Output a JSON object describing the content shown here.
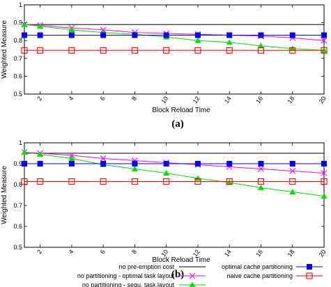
{
  "chart_data": [
    {
      "type": "line",
      "panel_label": "(a)",
      "xlabel": "Block Reload Time",
      "ylabel": "Weighted Measure",
      "xlim": [
        1,
        20
      ],
      "ylim": [
        0.5,
        1
      ],
      "xticks": [
        2,
        4,
        6,
        8,
        10,
        12,
        14,
        16,
        18,
        20
      ],
      "yticks": [
        0.5,
        0.6,
        0.7,
        0.8,
        0.9,
        1
      ],
      "grid": false,
      "series": [
        {
          "name": "no pre-emption cost",
          "color": "#000000",
          "marker": "none",
          "x": [
            1,
            20
          ],
          "y": [
            0.89,
            0.89
          ]
        },
        {
          "name": "no partitioning - optimal task layout",
          "color": "#ff00ff",
          "marker": "cross",
          "x": [
            1,
            2,
            4,
            6,
            8,
            10,
            12,
            14,
            16,
            18,
            20
          ],
          "y": [
            0.89,
            0.885,
            0.87,
            0.86,
            0.845,
            0.84,
            0.835,
            0.83,
            0.825,
            0.815,
            0.8
          ]
        },
        {
          "name": "no partitioning - sequ. task layout",
          "color": "#00dd00",
          "marker": "triangle",
          "x": [
            1,
            2,
            4,
            6,
            8,
            10,
            12,
            14,
            16,
            18,
            20
          ],
          "y": [
            0.89,
            0.88,
            0.86,
            0.845,
            0.835,
            0.82,
            0.8,
            0.79,
            0.77,
            0.755,
            0.745
          ]
        },
        {
          "name": "optimal cache partitioning",
          "color": "#0000ff",
          "marker": "filled-square",
          "x": [
            1,
            2,
            4,
            6,
            8,
            10,
            12,
            14,
            16,
            18,
            20
          ],
          "y": [
            0.83,
            0.83,
            0.83,
            0.83,
            0.83,
            0.83,
            0.83,
            0.83,
            0.83,
            0.83,
            0.83
          ]
        },
        {
          "name": "naive cache partitioning",
          "color": "#ff0000",
          "marker": "open-square",
          "x": [
            1,
            2,
            4,
            6,
            8,
            10,
            12,
            14,
            16,
            18,
            20
          ],
          "y": [
            0.745,
            0.745,
            0.745,
            0.745,
            0.745,
            0.745,
            0.745,
            0.745,
            0.745,
            0.745,
            0.745
          ]
        }
      ]
    },
    {
      "type": "line",
      "panel_label": "(b)",
      "xlabel": "Block Reload Time",
      "ylabel": "Weighted Measure",
      "xlim": [
        1,
        20
      ],
      "ylim": [
        0.5,
        1
      ],
      "xticks": [
        2,
        4,
        6,
        8,
        10,
        12,
        14,
        16,
        18,
        20
      ],
      "yticks": [
        0.5,
        0.6,
        0.7,
        0.8,
        0.9,
        1
      ],
      "grid": false,
      "series": [
        {
          "name": "no pre-emption cost",
          "color": "#000000",
          "marker": "none",
          "x": [
            1,
            20
          ],
          "y": [
            0.95,
            0.95
          ]
        },
        {
          "name": "no partitioning - optimal task layout",
          "color": "#ff00ff",
          "marker": "cross",
          "x": [
            1,
            2,
            4,
            6,
            8,
            10,
            12,
            14,
            16,
            18,
            20
          ],
          "y": [
            0.955,
            0.95,
            0.94,
            0.925,
            0.915,
            0.905,
            0.895,
            0.885,
            0.875,
            0.865,
            0.855
          ]
        },
        {
          "name": "no partitioning - sequ. task layout",
          "color": "#00dd00",
          "marker": "triangle",
          "x": [
            1,
            2,
            4,
            6,
            8,
            10,
            12,
            14,
            16,
            18,
            20
          ],
          "y": [
            0.955,
            0.945,
            0.925,
            0.895,
            0.875,
            0.855,
            0.83,
            0.81,
            0.785,
            0.765,
            0.745
          ]
        },
        {
          "name": "optimal cache partitioning",
          "color": "#0000ff",
          "marker": "filled-square",
          "x": [
            1,
            2,
            4,
            6,
            8,
            10,
            12,
            14,
            16,
            18,
            20
          ],
          "y": [
            0.9,
            0.9,
            0.9,
            0.9,
            0.9,
            0.9,
            0.9,
            0.9,
            0.9,
            0.9,
            0.9
          ]
        },
        {
          "name": "naive cache partitioning",
          "color": "#ff0000",
          "marker": "open-square",
          "x": [
            1,
            2,
            4,
            6,
            8,
            10,
            12,
            14,
            16,
            18,
            20
          ],
          "y": [
            0.815,
            0.815,
            0.815,
            0.815,
            0.815,
            0.815,
            0.815,
            0.815,
            0.815,
            0.815,
            0.815
          ]
        }
      ]
    }
  ],
  "legend": {
    "left": [
      {
        "label": "no pre-emption cost",
        "color": "#000000",
        "marker": "none"
      },
      {
        "label": "no partitioning - optimal task layout",
        "color": "#ff00ff",
        "marker": "cross"
      },
      {
        "label": "no partitioning - sequ. task layout",
        "color": "#00dd00",
        "marker": "triangle"
      }
    ],
    "right": [
      {
        "label": "optimal cache partitioning",
        "color": "#0000ff",
        "marker": "filled-square"
      },
      {
        "label": "naive cache partitioning",
        "color": "#ff0000",
        "marker": "open-square"
      }
    ]
  }
}
